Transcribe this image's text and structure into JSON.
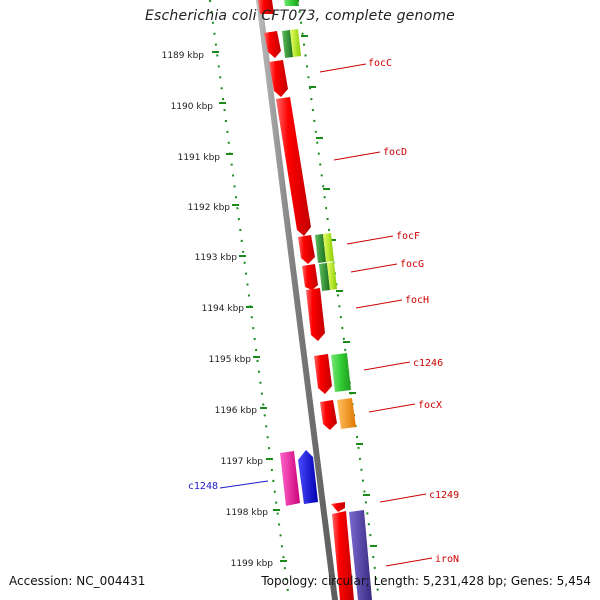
{
  "title": "Escherichia coli CFT073, complete genome",
  "accession_text": "Accession: NC_004431",
  "summary_text": "Topology: circular; Length: 5,231,428 bp; Genes: 5,454",
  "colors": {
    "backbone": "#8a8a8a",
    "dotted_track": "#1a8a1a",
    "label_red": "#cc0000",
    "label_blue": "#1a1acc"
  },
  "ruler_labels": [
    "1189 kbp",
    "1190 kbp",
    "1191 kbp",
    "1192 kbp",
    "1193 kbp",
    "1194 kbp",
    "1195 kbp",
    "1196 kbp",
    "1197 kbp",
    "1198 kbp",
    "1199 kbp"
  ],
  "gene_labels": [
    {
      "text": "focC",
      "color": "#cc0000"
    },
    {
      "text": "focD",
      "color": "#cc0000"
    },
    {
      "text": "focF",
      "color": "#cc0000"
    },
    {
      "text": "focG",
      "color": "#cc0000"
    },
    {
      "text": "focH",
      "color": "#cc0000"
    },
    {
      "text": "c1246",
      "color": "#cc0000"
    },
    {
      "text": "focX",
      "color": "#cc0000"
    },
    {
      "text": "c1248",
      "color": "#1a1acc"
    },
    {
      "text": "c1249",
      "color": "#cc0000"
    },
    {
      "text": "iroN",
      "color": "#cc0000"
    }
  ]
}
